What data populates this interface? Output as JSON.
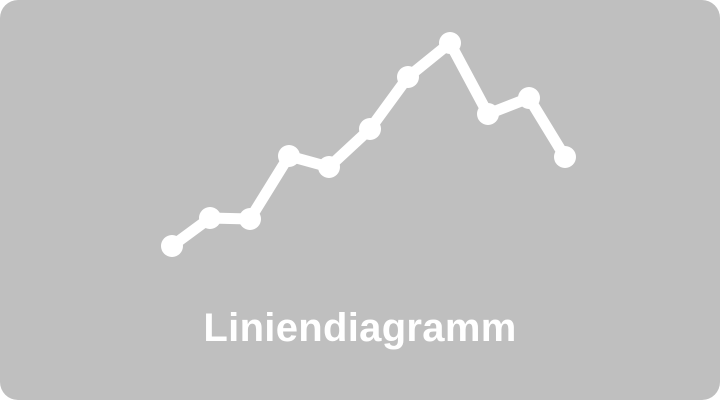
{
  "tile": {
    "label": "Liniendiagramm",
    "icon": "line-chart-icon",
    "background_color": "#bfbfbf",
    "foreground_color": "#ffffff"
  }
}
